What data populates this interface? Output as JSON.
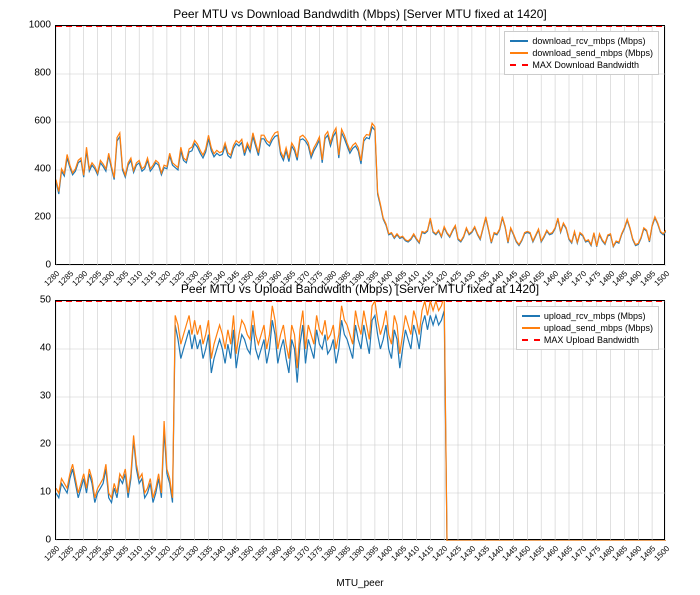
{
  "x_start": 1280,
  "x_end": 1500,
  "x_step_label": 5,
  "xlabel": "MTU_peer",
  "colors": {
    "rcv": "#1f77b4",
    "send": "#ff7f0e",
    "max": "#ff0000",
    "grid": "#cccccc",
    "background": "#ffffff"
  },
  "download": {
    "title": "Peer MTU vs Download Bandwdith (Mbps) [Server MTU fixed at 1420]",
    "ylim": [
      0,
      1000
    ],
    "ytick_step": 200,
    "max_value": 1000,
    "legend": [
      {
        "label": "download_rcv_mbps (Mbps)",
        "colorKey": "rcv",
        "dash": false
      },
      {
        "label": "download_send_mbps (Mbps)",
        "colorKey": "send",
        "dash": false
      },
      {
        "label": "MAX Download Bandwidth",
        "colorKey": "max",
        "dash": true
      }
    ],
    "rcv": [
      350,
      300,
      395,
      375,
      450,
      410,
      380,
      395,
      430,
      440,
      370,
      480,
      395,
      420,
      405,
      380,
      430,
      415,
      395,
      460,
      405,
      360,
      520,
      540,
      400,
      370,
      420,
      440,
      390,
      420,
      430,
      395,
      405,
      440,
      395,
      410,
      430,
      420,
      380,
      410,
      405,
      460,
      420,
      410,
      400,
      480,
      440,
      430,
      475,
      480,
      510,
      495,
      470,
      450,
      475,
      530,
      480,
      455,
      470,
      460,
      465,
      500,
      460,
      450,
      490,
      510,
      500,
      515,
      460,
      500,
      475,
      540,
      500,
      460,
      530,
      530,
      510,
      500,
      525,
      540,
      545,
      465,
      440,
      480,
      435,
      500,
      480,
      440,
      525,
      530,
      520,
      500,
      450,
      480,
      500,
      525,
      430,
      530,
      545,
      500,
      540,
      560,
      450,
      555,
      530,
      500,
      470,
      490,
      500,
      480,
      425,
      520,
      535,
      530,
      580,
      565,
      300,
      250,
      195,
      170,
      130,
      135,
      115,
      130,
      115,
      120,
      105,
      100,
      110,
      130,
      110,
      95,
      140,
      135,
      145,
      195,
      140,
      130,
      145,
      120,
      160,
      135,
      120,
      145,
      165,
      110,
      100,
      120,
      155,
      130,
      140,
      160,
      130,
      110,
      155,
      200,
      150,
      95,
      135,
      130,
      150,
      200,
      160,
      95,
      155,
      130,
      100,
      85,
      105,
      135,
      140,
      135,
      100,
      125,
      150,
      100,
      120,
      145,
      130,
      135,
      155,
      195,
      140,
      175,
      155,
      110,
      95,
      140,
      95,
      135,
      125,
      100,
      105,
      85,
      135,
      80,
      130,
      105,
      90,
      125,
      130,
      80,
      100,
      95,
      130,
      155,
      190,
      155,
      110,
      85,
      90,
      115,
      155,
      145,
      100,
      165,
      200,
      175,
      140,
      130,
      145
    ],
    "send": [
      360,
      310,
      405,
      385,
      465,
      420,
      388,
      405,
      440,
      450,
      378,
      495,
      405,
      430,
      415,
      388,
      440,
      425,
      405,
      470,
      415,
      368,
      535,
      555,
      410,
      378,
      430,
      450,
      398,
      430,
      440,
      405,
      415,
      450,
      405,
      420,
      440,
      430,
      388,
      420,
      415,
      470,
      430,
      420,
      410,
      495,
      450,
      440,
      488,
      495,
      523,
      508,
      482,
      462,
      488,
      545,
      493,
      468,
      482,
      472,
      478,
      513,
      472,
      462,
      503,
      523,
      513,
      528,
      472,
      513,
      488,
      555,
      513,
      472,
      545,
      545,
      523,
      513,
      538,
      555,
      560,
      478,
      452,
      493,
      448,
      513,
      493,
      452,
      538,
      545,
      533,
      513,
      462,
      493,
      513,
      538,
      442,
      545,
      560,
      513,
      555,
      575,
      462,
      570,
      545,
      513,
      482,
      503,
      513,
      493,
      438,
      533,
      548,
      545,
      595,
      580,
      308,
      258,
      200,
      175,
      134,
      139,
      119,
      134,
      119,
      124,
      109,
      104,
      114,
      134,
      114,
      99,
      144,
      139,
      149,
      200,
      144,
      134,
      149,
      124,
      164,
      139,
      124,
      149,
      169,
      114,
      104,
      124,
      159,
      134,
      144,
      164,
      134,
      114,
      159,
      205,
      154,
      99,
      139,
      134,
      154,
      205,
      164,
      99,
      159,
      134,
      104,
      89,
      109,
      139,
      144,
      139,
      104,
      129,
      154,
      104,
      124,
      149,
      134,
      139,
      159,
      200,
      144,
      179,
      159,
      114,
      99,
      144,
      99,
      139,
      129,
      104,
      109,
      89,
      139,
      83,
      134,
      109,
      94,
      129,
      134,
      83,
      104,
      99,
      134,
      159,
      195,
      159,
      114,
      89,
      94,
      119,
      159,
      149,
      104,
      169,
      205,
      179,
      144,
      134,
      149
    ]
  },
  "upload": {
    "title": "Peer MTU vs Upload Bandwdith (Mbps) [Server MTU fixed at 1420]",
    "ylim": [
      0,
      50
    ],
    "ytick_step": 10,
    "max_value": 50,
    "legend": [
      {
        "label": "upload_rcv_mbps (Mbps)",
        "colorKey": "rcv",
        "dash": false
      },
      {
        "label": "upload_send_mbps (Mbps)",
        "colorKey": "send",
        "dash": false
      },
      {
        "label": "MAX Upload Bandwidth",
        "colorKey": "max",
        "dash": true
      }
    ],
    "rcv": [
      10,
      9,
      12,
      11,
      10,
      13,
      15,
      12,
      9,
      11,
      13,
      10,
      14,
      12,
      8,
      10,
      11,
      12,
      15,
      9,
      8,
      11,
      9,
      13,
      12,
      14,
      9,
      13,
      21,
      15,
      12,
      13,
      9,
      10,
      12,
      8,
      10,
      13,
      9,
      23,
      14,
      12,
      8,
      45,
      42,
      38,
      40,
      42,
      44,
      40,
      43,
      40,
      42,
      38,
      40,
      43,
      35,
      38,
      40,
      42,
      40,
      37,
      41,
      38,
      44,
      36,
      40,
      43,
      42,
      40,
      39,
      45,
      40,
      38,
      40,
      42,
      37,
      40,
      46,
      43,
      37,
      40,
      42,
      38,
      35,
      42,
      40,
      33,
      41,
      45,
      37,
      42,
      40,
      38,
      44,
      41,
      40,
      43,
      39,
      40,
      42,
      37,
      40,
      46,
      43,
      42,
      40,
      38,
      45,
      42,
      40,
      45,
      42,
      39,
      46,
      47,
      43,
      40,
      42,
      45,
      40,
      38,
      44,
      42,
      36,
      40,
      44,
      42,
      40,
      45,
      43,
      40,
      45,
      47,
      44,
      47,
      45,
      47,
      45,
      46,
      48,
      0,
      0,
      0,
      0,
      0,
      0,
      0,
      0,
      0,
      0,
      0,
      0,
      0,
      0,
      0,
      0,
      0,
      0,
      0,
      0,
      0,
      0,
      0,
      0,
      0,
      0,
      0,
      0,
      0,
      0,
      0,
      0,
      0,
      0,
      0,
      0,
      0,
      0,
      0,
      0,
      0,
      0,
      0,
      0,
      0,
      0,
      0,
      0,
      0,
      0,
      0,
      0,
      0,
      0,
      0,
      0,
      0,
      0,
      0,
      0,
      0,
      0,
      0,
      0,
      0,
      0,
      0,
      0,
      0,
      0,
      0,
      0,
      0,
      0,
      0,
      0,
      0,
      0,
      0,
      0
    ],
    "send": [
      11,
      10,
      13,
      12,
      11,
      14,
      16,
      13,
      10,
      12,
      14,
      11,
      15,
      13,
      9,
      11,
      12,
      13,
      16,
      10,
      9,
      12,
      10,
      14,
      13,
      15,
      10,
      14,
      22,
      16,
      13,
      14,
      10,
      11,
      13,
      9,
      11,
      14,
      10,
      25,
      15,
      13,
      9,
      47,
      45,
      41,
      43,
      45,
      47,
      43,
      46,
      43,
      45,
      41,
      43,
      46,
      38,
      41,
      43,
      45,
      43,
      40,
      44,
      41,
      47,
      39,
      43,
      46,
      45,
      43,
      42,
      48,
      43,
      41,
      43,
      45,
      40,
      43,
      49,
      46,
      40,
      43,
      45,
      41,
      38,
      45,
      43,
      36,
      44,
      48,
      40,
      45,
      43,
      41,
      47,
      44,
      43,
      46,
      42,
      43,
      45,
      40,
      43,
      49,
      46,
      45,
      43,
      41,
      48,
      45,
      43,
      48,
      45,
      42,
      49,
      50,
      46,
      43,
      45,
      48,
      43,
      41,
      47,
      45,
      39,
      43,
      47,
      45,
      43,
      48,
      46,
      43,
      48,
      50,
      47,
      50,
      48,
      50,
      48,
      49,
      51,
      0,
      0,
      0,
      0,
      0,
      0,
      0,
      0,
      0,
      0,
      0,
      0,
      0,
      0,
      0,
      0,
      0,
      0,
      0,
      0,
      0,
      0,
      0,
      0,
      0,
      0,
      0,
      0,
      0,
      0,
      0,
      0,
      0,
      0,
      0,
      0,
      0,
      0,
      0,
      0,
      0,
      0,
      0,
      0,
      0,
      0,
      0,
      0,
      0,
      0,
      0,
      0,
      0,
      0,
      0,
      0,
      0,
      0,
      0,
      0,
      0,
      0,
      0,
      0,
      0,
      0,
      0,
      0,
      0,
      0,
      0,
      0,
      0,
      0,
      0,
      0,
      0,
      0,
      0,
      0
    ]
  }
}
